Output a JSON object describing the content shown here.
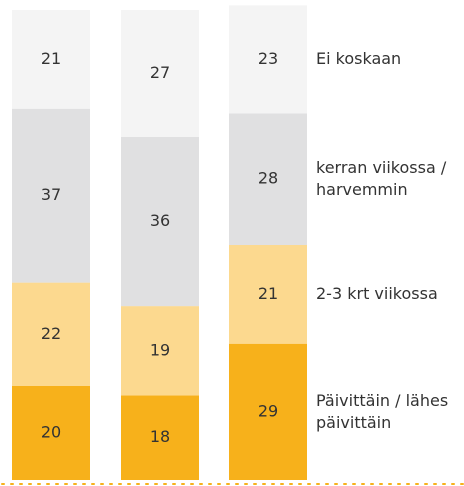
{
  "chart_data": {
    "type": "stacked-bar",
    "categories": [
      null,
      null,
      null
    ],
    "series": [
      {
        "name": "Päivittäin / lähes päivittäin",
        "color": "#f7b11b",
        "values": [
          20,
          18,
          29
        ]
      },
      {
        "name": "2-3 krt viikossa",
        "color": "#fcd98f",
        "values": [
          22,
          19,
          21
        ]
      },
      {
        "name": "kerran viikossa / harvemmin",
        "color": "#e0e0e1",
        "values": [
          37,
          36,
          28
        ]
      },
      {
        "name": "Ei koskaan",
        "color": "#f4f4f4",
        "values": [
          21,
          27,
          23
        ]
      }
    ]
  }
}
